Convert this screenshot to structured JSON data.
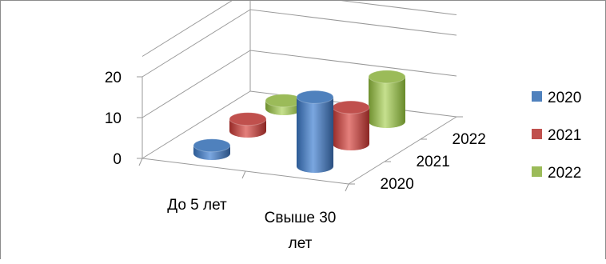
{
  "chart_data": {
    "type": "bar3d-cylinder",
    "categories": [
      "До 5 лет",
      "Свыше 30 лет"
    ],
    "category_lines": [
      [
        "До 5 лет"
      ],
      [
        "Свыше 30",
        "лет"
      ]
    ],
    "series": [
      {
        "name": "2020",
        "color": "#4f81bd",
        "values": [
          2,
          17
        ]
      },
      {
        "name": "2021",
        "color": "#c0504d",
        "values": [
          3,
          9
        ]
      },
      {
        "name": "2022",
        "color": "#9bbb59",
        "values": [
          2,
          11
        ]
      }
    ],
    "depth_labels": [
      "2020",
      "2021",
      "2022"
    ],
    "y_ticks": [
      0,
      10,
      20
    ],
    "ylim": [
      0,
      20
    ],
    "grid": true,
    "legend": "right"
  }
}
